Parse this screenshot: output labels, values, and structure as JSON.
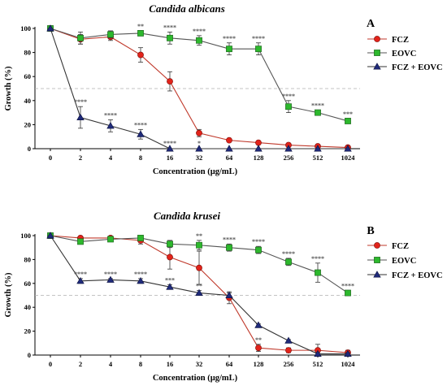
{
  "colors": {
    "fcz": "#e2231a",
    "eovc": "#2db82d",
    "combo": "#1f2a7a",
    "fcz_line": "#c0392b",
    "eovc_line": "#555555",
    "combo_line": "#333333",
    "threshold": "#b0b0b0"
  },
  "chart_data": [
    {
      "type": "line",
      "title": "Candida albicans",
      "panel": "A",
      "xlabel": "Concentration (µg/mL)",
      "ylabel": "Growth (%)",
      "ylim": [
        0,
        100
      ],
      "yticks": [
        "0",
        "20",
        "40",
        "60",
        "80",
        "100"
      ],
      "categories": [
        "0",
        "2",
        "4",
        "8",
        "16",
        "32",
        "64",
        "128",
        "256",
        "512",
        "1024"
      ],
      "threshold": 50,
      "legend_position": "top-right",
      "series": [
        {
          "name": "FCZ",
          "marker": "circle",
          "values": [
            100,
            91,
            93,
            78,
            56,
            13,
            7,
            5,
            3,
            2,
            1
          ],
          "errors": [
            0,
            4,
            3,
            6,
            8,
            3,
            1,
            1,
            1,
            1,
            1
          ],
          "labels": [
            "",
            "",
            "",
            "",
            "",
            "",
            "",
            "",
            "",
            "",
            ""
          ]
        },
        {
          "name": "EOVC",
          "marker": "square",
          "values": [
            100,
            92,
            95,
            96,
            92,
            90,
            83,
            83,
            35,
            30,
            23
          ],
          "errors": [
            0,
            5,
            3,
            2,
            5,
            4,
            5,
            5,
            5,
            2,
            2
          ],
          "labels": [
            "",
            "",
            "",
            "**",
            "****",
            "****",
            "****",
            "****",
            "****",
            "****",
            "***"
          ]
        },
        {
          "name": "FCZ + EOVC",
          "marker": "triangle",
          "values": [
            100,
            26,
            19,
            12,
            0,
            0,
            0,
            0,
            0,
            0,
            0
          ],
          "errors": [
            0,
            9,
            5,
            4,
            0,
            0,
            0,
            0,
            0,
            0,
            0
          ],
          "labels": [
            "",
            "****",
            "****",
            "****",
            "****",
            "*",
            "",
            "",
            "",
            "",
            ""
          ]
        }
      ]
    },
    {
      "type": "line",
      "title": "Candida krusei",
      "panel": "B",
      "xlabel": "Concentration (µg/mL)",
      "ylabel": "Growth (%)",
      "ylim": [
        0,
        100
      ],
      "yticks": [
        "0",
        "20",
        "40",
        "60",
        "80",
        "100"
      ],
      "categories": [
        "0",
        "2",
        "4",
        "8",
        "16",
        "32",
        "64",
        "128",
        "256",
        "512",
        "1024"
      ],
      "threshold": 50,
      "legend_position": "top-right",
      "series": [
        {
          "name": "FCZ",
          "marker": "circle",
          "values": [
            100,
            98,
            98,
            96,
            82,
            73,
            48,
            6,
            4,
            4,
            2
          ],
          "errors": [
            0,
            1,
            1,
            3,
            10,
            14,
            5,
            3,
            2,
            5,
            2
          ],
          "labels": [
            "",
            "",
            "",
            "",
            "",
            "",
            "",
            "**",
            "",
            "",
            ""
          ]
        },
        {
          "name": "EOVC",
          "marker": "square",
          "values": [
            100,
            95,
            97,
            98,
            93,
            92,
            90,
            88,
            78,
            69,
            52
          ],
          "errors": [
            0,
            2,
            2,
            2,
            3,
            4,
            3,
            3,
            3,
            8,
            2
          ],
          "labels": [
            "",
            "",
            "",
            "",
            "",
            "**",
            "****",
            "****",
            "****",
            "****",
            "****"
          ]
        },
        {
          "name": "FCZ + EOVC",
          "marker": "triangle",
          "values": [
            100,
            62,
            63,
            62,
            57,
            52,
            50,
            25,
            12,
            1,
            1
          ],
          "errors": [
            0,
            2,
            1,
            2,
            2,
            2,
            2,
            1,
            1,
            1,
            1
          ],
          "labels": [
            "",
            "****",
            "****",
            "****",
            "***",
            "**",
            "",
            "",
            "",
            "",
            ""
          ]
        }
      ]
    }
  ]
}
